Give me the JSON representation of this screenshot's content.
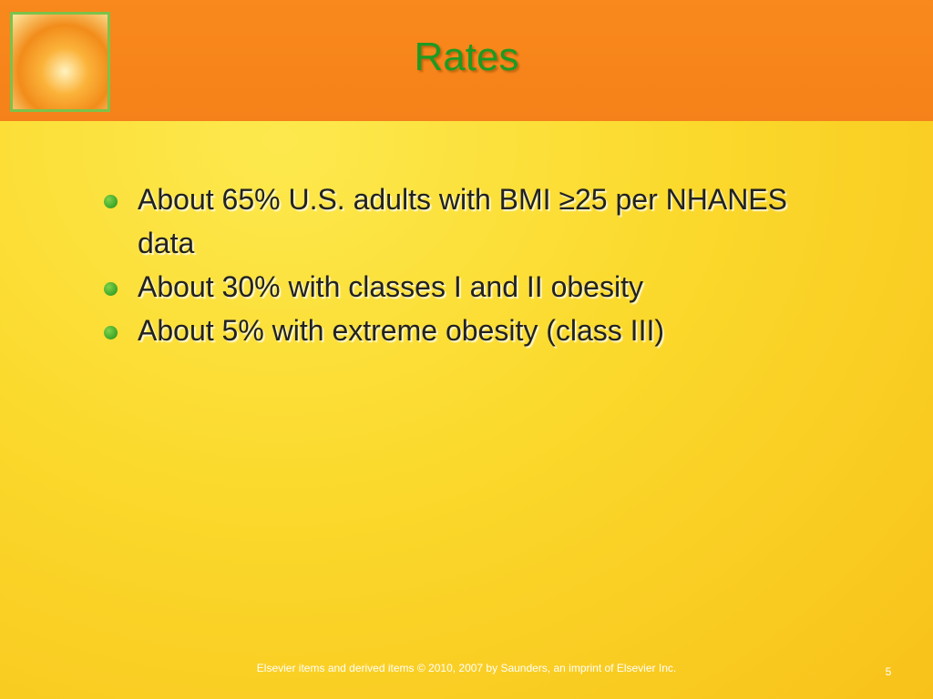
{
  "header": {
    "title": "Rates"
  },
  "bullets": [
    "About 65% U.S. adults with BMI ≥25 per NHANES data",
    "About 30% with classes I and II obesity",
    "About 5% with extreme obesity (class III)"
  ],
  "footer": {
    "text": "Elsevier items and derived items © 2010, 2007 by Saunders, an imprint of Elsevier Inc.",
    "page": "5"
  }
}
